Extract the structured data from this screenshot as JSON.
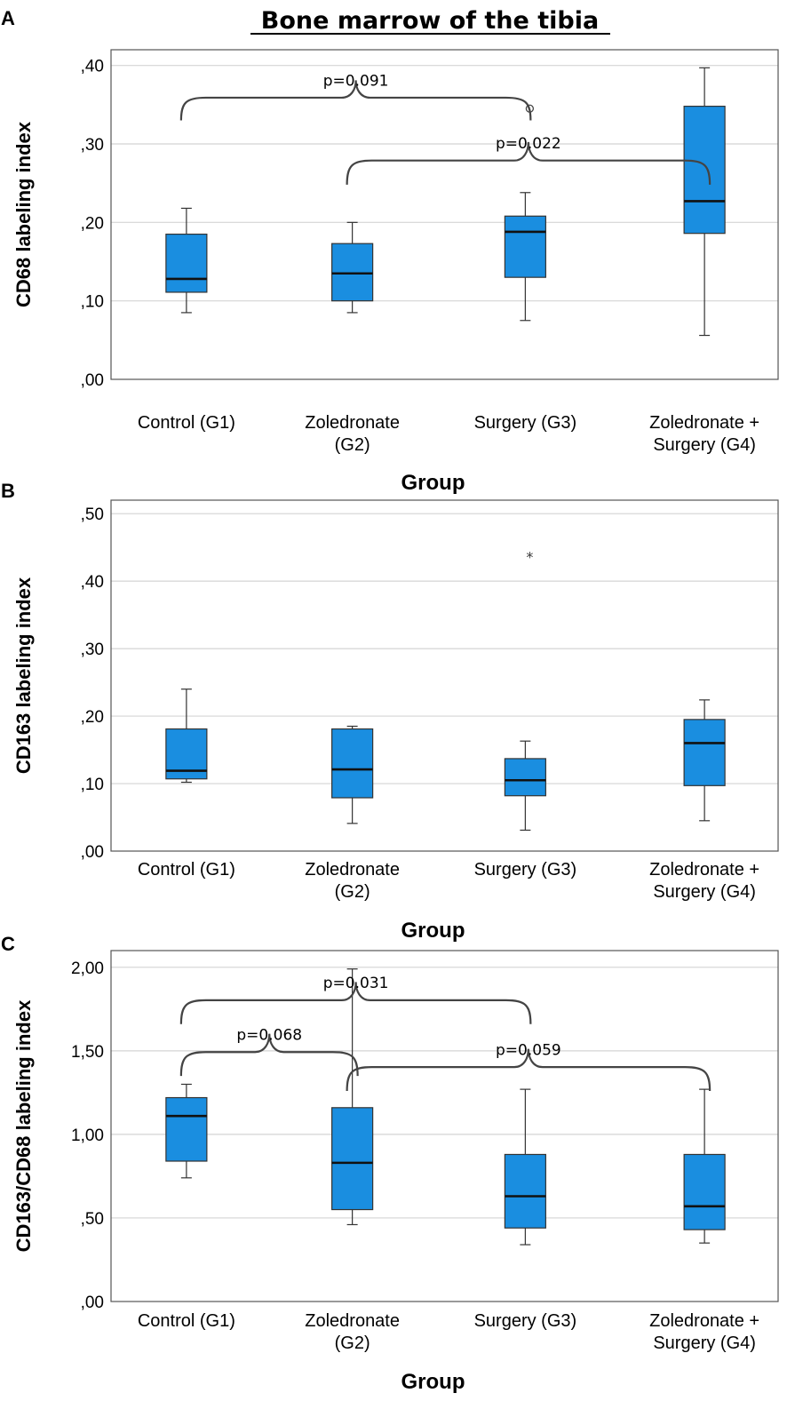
{
  "title": "Bone marrow of the tibia",
  "chart_data": [
    {
      "type": "boxplot",
      "panel": "A",
      "ylabel": "CD68 labeling index",
      "xlabel": "Group",
      "ylim": [
        0,
        0.42
      ],
      "ticks": [
        ",00",
        ",10",
        ",20",
        ",30",
        ",40"
      ],
      "tick_values": [
        0,
        0.1,
        0.2,
        0.3,
        0.4
      ],
      "categories": [
        [
          "Control (G1)"
        ],
        [
          "Zoledronate",
          "(G2)"
        ],
        [
          "Surgery (G3)"
        ],
        [
          "Zoledronate +",
          "Surgery (G4)"
        ]
      ],
      "boxes": [
        {
          "min": 0.085,
          "q1": 0.111,
          "median": 0.128,
          "q3": 0.185,
          "max": 0.218
        },
        {
          "min": 0.085,
          "q1": 0.1,
          "median": 0.135,
          "q3": 0.173,
          "max": 0.2
        },
        {
          "min": 0.075,
          "q1": 0.13,
          "median": 0.188,
          "q3": 0.208,
          "max": 0.238
        },
        {
          "min": 0.056,
          "q1": 0.186,
          "median": 0.227,
          "q3": 0.348,
          "max": 0.397
        }
      ],
      "outliers": [
        {
          "group": 2,
          "value": 0.345,
          "marker": "circle"
        }
      ],
      "comparisons": [
        {
          "from": 0,
          "to": 2,
          "label": "p=0.091",
          "y": 0.33,
          "rise": 0.024
        },
        {
          "from": 1,
          "to": 3,
          "label": "p=0.022",
          "y": 0.248,
          "rise": 0.026
        }
      ]
    },
    {
      "type": "boxplot",
      "panel": "B",
      "ylabel": "CD163 labeling index",
      "xlabel": "Group",
      "ylim": [
        0,
        0.52
      ],
      "ticks": [
        ",00",
        ",10",
        ",20",
        ",30",
        ",40",
        ",50"
      ],
      "tick_values": [
        0,
        0.1,
        0.2,
        0.3,
        0.4,
        0.5
      ],
      "categories": [
        [
          "Control (G1)"
        ],
        [
          "Zoledronate",
          "(G2)"
        ],
        [
          "Surgery (G3)"
        ],
        [
          "Zoledronate +",
          "Surgery (G4)"
        ]
      ],
      "boxes": [
        {
          "min": 0.102,
          "q1": 0.107,
          "median": 0.119,
          "q3": 0.181,
          "max": 0.24
        },
        {
          "min": 0.041,
          "q1": 0.079,
          "median": 0.121,
          "q3": 0.181,
          "max": 0.185
        },
        {
          "min": 0.031,
          "q1": 0.082,
          "median": 0.105,
          "q3": 0.137,
          "max": 0.163
        },
        {
          "min": 0.045,
          "q1": 0.097,
          "median": 0.16,
          "q3": 0.195,
          "max": 0.224
        }
      ],
      "outliers": [
        {
          "group": 2,
          "value": 0.438,
          "marker": "star"
        }
      ],
      "comparisons": []
    },
    {
      "type": "boxplot",
      "panel": "C",
      "ylabel": "CD163/CD68 labeling index",
      "xlabel": "Group",
      "ylim": [
        0,
        2.1
      ],
      "ticks": [
        ",00",
        ",50",
        "1,00",
        "1,50",
        "2,00"
      ],
      "tick_values": [
        0,
        0.5,
        1.0,
        1.5,
        2.0
      ],
      "categories": [
        [
          "Control (G1)"
        ],
        [
          "Zoledronate",
          "(G2)"
        ],
        [
          "Surgery (G3)"
        ],
        [
          "Zoledronate +",
          "Surgery (G4)"
        ]
      ],
      "boxes": [
        {
          "min": 0.74,
          "q1": 0.84,
          "median": 1.11,
          "q3": 1.22,
          "max": 1.3
        },
        {
          "min": 0.46,
          "q1": 0.55,
          "median": 0.83,
          "q3": 1.16,
          "max": 1.99
        },
        {
          "min": 0.34,
          "q1": 0.44,
          "median": 0.63,
          "q3": 0.88,
          "max": 1.27
        },
        {
          "min": 0.35,
          "q1": 0.43,
          "median": 0.57,
          "q3": 0.88,
          "max": 1.27
        }
      ],
      "outliers": [],
      "comparisons": [
        {
          "from": 0,
          "to": 2,
          "label": "p=0.031",
          "y": 1.66,
          "rise": 0.12
        },
        {
          "from": 0,
          "to": 1,
          "label": "p=0.068",
          "y": 1.35,
          "rise": 0.12
        },
        {
          "from": 1,
          "to": 3,
          "label": "p=0.059",
          "y": 1.26,
          "rise": 0.12
        }
      ]
    }
  ]
}
